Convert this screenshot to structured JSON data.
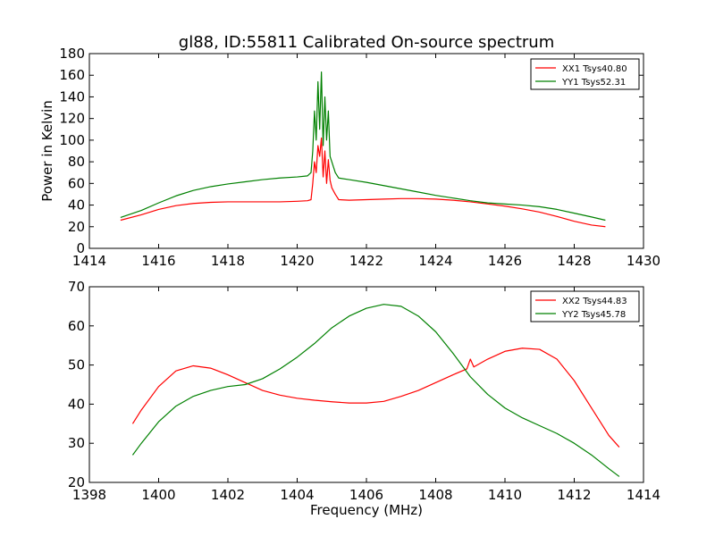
{
  "chart_data": [
    {
      "type": "line",
      "title": "gl88, ID:55811 Calibrated On-source spectrum",
      "xlabel": "",
      "ylabel": "Power in Kelvin",
      "xlim": [
        1414,
        1430
      ],
      "ylim": [
        0,
        180
      ],
      "xticks": [
        1414,
        1416,
        1418,
        1420,
        1422,
        1424,
        1426,
        1428,
        1430
      ],
      "yticks": [
        0,
        20,
        40,
        60,
        80,
        100,
        120,
        140,
        160,
        180
      ],
      "grid": false,
      "legend_position": "top-right",
      "series": [
        {
          "name": "XX1 Tsys40.80",
          "color": "#ff0000",
          "x": [
            1414.9,
            1415.5,
            1416.0,
            1416.5,
            1417.0,
            1417.5,
            1418.0,
            1418.5,
            1419.0,
            1419.5,
            1420.0,
            1420.3,
            1420.4,
            1420.45,
            1420.5,
            1420.55,
            1420.6,
            1420.65,
            1420.7,
            1420.75,
            1420.8,
            1420.85,
            1420.9,
            1420.95,
            1421.0,
            1421.1,
            1421.2,
            1421.5,
            1422.0,
            1422.5,
            1423.0,
            1423.5,
            1424.0,
            1424.5,
            1425.0,
            1425.5,
            1426.0,
            1426.5,
            1427.0,
            1427.5,
            1428.0,
            1428.5,
            1428.9
          ],
          "y": [
            26,
            31,
            36,
            39.5,
            41.5,
            42.5,
            43,
            43,
            43,
            43,
            43.5,
            44,
            45,
            60,
            80,
            70,
            95,
            85,
            102,
            66,
            90,
            60,
            82,
            63,
            56,
            50,
            45,
            44.5,
            45,
            45.5,
            46,
            46,
            45.5,
            44.5,
            43,
            41,
            39,
            36.5,
            33.5,
            29.5,
            25,
            21.5,
            20
          ]
        },
        {
          "name": "YY1 Tsys52.31",
          "color": "#008000",
          "x": [
            1414.9,
            1415.5,
            1416.0,
            1416.5,
            1417.0,
            1417.5,
            1418.0,
            1418.5,
            1419.0,
            1419.5,
            1420.0,
            1420.3,
            1420.4,
            1420.45,
            1420.5,
            1420.55,
            1420.6,
            1420.65,
            1420.7,
            1420.75,
            1420.8,
            1420.85,
            1420.9,
            1420.95,
            1421.0,
            1421.1,
            1421.2,
            1421.5,
            1422.0,
            1422.5,
            1423.0,
            1423.5,
            1424.0,
            1424.5,
            1425.0,
            1425.5,
            1426.0,
            1426.5,
            1427.0,
            1427.5,
            1428.0,
            1428.5,
            1428.9
          ],
          "y": [
            28.5,
            35,
            42,
            48.5,
            53.5,
            57,
            59.5,
            61.5,
            63.5,
            65,
            66,
            67,
            70,
            90,
            127,
            100,
            154,
            110,
            163,
            95,
            140,
            100,
            127,
            85,
            80,
            70,
            65,
            63.5,
            61,
            58,
            55,
            52,
            49,
            46.5,
            44,
            42,
            41,
            40,
            38.5,
            36,
            32.5,
            29,
            26
          ]
        }
      ]
    },
    {
      "type": "line",
      "title": "",
      "xlabel": "Frequency (MHz)",
      "ylabel": "",
      "xlim": [
        1398,
        1414
      ],
      "ylim": [
        20,
        70
      ],
      "xticks": [
        1398,
        1400,
        1402,
        1404,
        1406,
        1408,
        1410,
        1412,
        1414
      ],
      "yticks": [
        20,
        30,
        40,
        50,
        60,
        70
      ],
      "grid": false,
      "legend_position": "top-right",
      "series": [
        {
          "name": "XX2 Tsys44.83",
          "color": "#ff0000",
          "x": [
            1399.25,
            1399.5,
            1400.0,
            1400.5,
            1401.0,
            1401.5,
            1402.0,
            1402.5,
            1403.0,
            1403.5,
            1404.0,
            1404.5,
            1405.0,
            1405.5,
            1406.0,
            1406.5,
            1407.0,
            1407.5,
            1408.0,
            1408.5,
            1408.9,
            1409.0,
            1409.1,
            1409.5,
            1410.0,
            1410.5,
            1411.0,
            1411.5,
            1412.0,
            1412.5,
            1413.0,
            1413.3
          ],
          "y": [
            35,
            38.5,
            44.5,
            48.5,
            49.8,
            49.2,
            47.5,
            45.5,
            43.5,
            42.3,
            41.5,
            41,
            40.6,
            40.3,
            40.3,
            40.7,
            42,
            43.5,
            45.5,
            47.5,
            49,
            51.5,
            49.5,
            51.5,
            53.5,
            54.3,
            54,
            51.5,
            46,
            39,
            32,
            29
          ]
        },
        {
          "name": "YY2 Tsys45.78",
          "color": "#008000",
          "x": [
            1399.25,
            1399.5,
            1400.0,
            1400.5,
            1401.0,
            1401.5,
            1402.0,
            1402.5,
            1403.0,
            1403.5,
            1404.0,
            1404.5,
            1405.0,
            1405.5,
            1406.0,
            1406.5,
            1407.0,
            1407.5,
            1408.0,
            1408.5,
            1409.0,
            1409.5,
            1410.0,
            1410.5,
            1411.0,
            1411.5,
            1412.0,
            1412.5,
            1413.0,
            1413.3
          ],
          "y": [
            27,
            30,
            35.5,
            39.5,
            42,
            43.5,
            44.5,
            45,
            46.5,
            49,
            52,
            55.5,
            59.5,
            62.5,
            64.5,
            65.5,
            65,
            62.5,
            58.5,
            53,
            47,
            42.5,
            39,
            36.5,
            34.5,
            32.5,
            30,
            27,
            23.5,
            21.5
          ]
        }
      ]
    }
  ]
}
